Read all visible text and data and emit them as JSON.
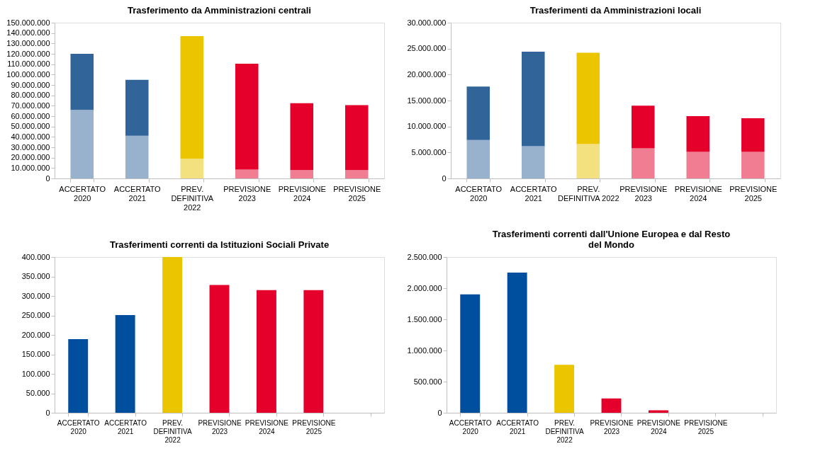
{
  "chart_data": [
    {
      "type": "bar",
      "title": "Trasferimento da Amministrazioni centrali",
      "stacked": true,
      "grid": false,
      "legend": false,
      "categories": [
        "ACCERTATO\n2020",
        "ACCERTATO\n2021",
        "PREV.\nDEFINITIVA\n2022",
        "PREVISIONE\n2023",
        "PREVISIONE\n2024",
        "PREVISIONE\n2025"
      ],
      "series": [
        {
          "colors": [
            "#98b1cc",
            "#98b1cc",
            "#f3e07f",
            "#f07d92",
            "#f07d92",
            "#f07d92"
          ],
          "values": [
            66000000,
            41000000,
            19000000,
            8500000,
            8000000,
            8000000
          ]
        },
        {
          "colors": [
            "#31659a",
            "#31659a",
            "#ebc600",
            "#e4002b",
            "#e4002b",
            "#e4002b"
          ],
          "values": [
            54000000,
            54000000,
            118000000,
            102000000,
            64500000,
            62500000
          ]
        }
      ],
      "ylim": [
        0,
        150000000
      ],
      "yticks": [
        0,
        {
          "value": 10000000,
          "label": "10.000.000"
        },
        {
          "value": 20000000,
          "label": "20.000.000"
        },
        {
          "value": 30000000,
          "label": "30.000.000"
        },
        {
          "value": 40000000,
          "label": "40.000.000"
        },
        {
          "value": 50000000,
          "label": "50.000.000"
        },
        {
          "value": 60000000,
          "label": "60.000.000"
        },
        {
          "value": 70000000,
          "label": "70.000.000"
        },
        {
          "value": 80000000,
          "label": "80.000.000"
        },
        {
          "value": 90000000,
          "label": "90.000.000"
        },
        {
          "value": 100000000,
          "label": "100.000.000"
        },
        {
          "value": 110000000,
          "label": "110.000.000"
        },
        {
          "value": 120000000,
          "label": "120.000.000"
        },
        {
          "value": 130000000,
          "label": "130.000.000"
        },
        {
          "value": 140000000,
          "label": "140.000.000"
        },
        {
          "value": 150000000,
          "label": "150.000.000"
        }
      ]
    },
    {
      "type": "bar",
      "title": "Trasferimenti da Amministrazioni locali",
      "stacked": true,
      "grid": false,
      "legend": false,
      "categories": [
        "ACCERTATO\n2020",
        "ACCERTATO\n2021",
        "PREV.\nDEFINITIVA 2022",
        "PREVISIONE\n2023",
        "PREVISIONE\n2024",
        "PREVISIONE\n2025"
      ],
      "series": [
        {
          "colors": [
            "#98b1cc",
            "#98b1cc",
            "#f3e07f",
            "#f07d92",
            "#f07d92",
            "#f07d92"
          ],
          "values": [
            7400000,
            6200000,
            6600000,
            5800000,
            5100000,
            5100000
          ]
        },
        {
          "colors": [
            "#31659a",
            "#31659a",
            "#ebc600",
            "#e4002b",
            "#e4002b",
            "#e4002b"
          ],
          "values": [
            10300000,
            18200000,
            17600000,
            8200000,
            6900000,
            6500000
          ]
        }
      ],
      "ylim": [
        0,
        30000000
      ],
      "yticks": [
        0,
        {
          "value": 5000000,
          "label": "5.000.000"
        },
        {
          "value": 10000000,
          "label": "10.000.000"
        },
        {
          "value": 15000000,
          "label": "15.000.000"
        },
        {
          "value": 20000000,
          "label": "20.000.000"
        },
        {
          "value": 25000000,
          "label": "25.000.000"
        },
        {
          "value": 30000000,
          "label": "30.000.000"
        }
      ]
    },
    {
      "type": "bar",
      "title": "Trasferimenti correnti da Istituzioni Sociali Private",
      "stacked": true,
      "grid": false,
      "legend": false,
      "categories": [
        "ACCERTATO\n2020",
        "ACCERTATO\n2021",
        "PREV.\nDEFINITIVA\n2022",
        "PREVISIONE\n2023",
        "PREVISIONE\n2024",
        "PREVISIONE\n2025",
        null
      ],
      "series": [
        {
          "colors": [
            "#004e9e",
            "#004e9e",
            "#ebc600",
            "#e4002b",
            "#e4002b",
            "#e4002b",
            "#e4002b"
          ],
          "values": [
            189000,
            251000,
            400000,
            328000,
            315000,
            315000,
            null
          ]
        }
      ],
      "ylim": [
        0,
        400000
      ],
      "yticks": [
        0,
        {
          "value": 50000,
          "label": "50.000"
        },
        {
          "value": 100000,
          "label": "100.000"
        },
        {
          "value": 150000,
          "label": "150.000"
        },
        {
          "value": 200000,
          "label": "200.000"
        },
        {
          "value": 250000,
          "label": "250.000"
        },
        {
          "value": 300000,
          "label": "300.000"
        },
        {
          "value": 350000,
          "label": "350.000"
        },
        {
          "value": 400000,
          "label": "400.000"
        }
      ]
    },
    {
      "type": "bar",
      "title": "Trasferimenti correnti dall'Unione Europea e dal Resto del Mondo",
      "stacked": true,
      "grid": false,
      "legend": false,
      "categories": [
        "ACCERTATO\n2020",
        "ACCERTATO\n2021",
        "PREV.\nDEFINITIVA\n2022",
        "PREVISIONE\n2023",
        "PREVISIONE\n2024",
        "PREVISIONE\n2025",
        null
      ],
      "series": [
        {
          "colors": [
            "#004e9e",
            "#004e9e",
            "#ebc600",
            "#e4002b",
            "#e4002b",
            "#e4002b",
            "#e4002b"
          ],
          "values": [
            1900000,
            2250000,
            770000,
            230000,
            40000,
            0,
            null
          ]
        }
      ],
      "ylim": [
        0,
        2500000
      ],
      "yticks": [
        0,
        {
          "value": 500000,
          "label": "500.000"
        },
        {
          "value": 1000000,
          "label": "1.000.000"
        },
        {
          "value": 1500000,
          "label": "1.500.000"
        },
        {
          "value": 2000000,
          "label": "2.000.000"
        },
        {
          "value": 2500000,
          "label": "2.500.000"
        }
      ]
    }
  ]
}
